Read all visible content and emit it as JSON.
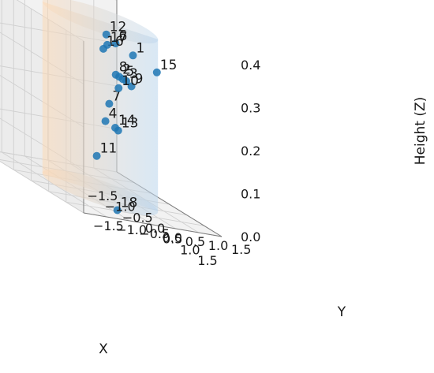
{
  "chart_data": {
    "type": "scatter3d",
    "title": "",
    "xlabel": "X",
    "ylabel": "Y",
    "zlabel": "Height (Z)",
    "xlim": [
      -1.5,
      1.5
    ],
    "ylim": [
      -1.5,
      1.5
    ],
    "zlim": [
      0.0,
      0.4
    ],
    "x_ticks": [
      "−1.5",
      "−1.0",
      "−0.5",
      "0.0",
      "0.5",
      "1.0",
      "1.5"
    ],
    "y_ticks": [
      "−1.5",
      "−1.0",
      "−0.5",
      "0.0",
      "0.5",
      "1.0",
      "1.5"
    ],
    "z_ticks": [
      "0.0",
      "0.1",
      "0.2",
      "0.3",
      "0.4"
    ],
    "grid": true,
    "cylinder": {
      "radius": 1.0,
      "z_range": [
        0.0,
        0.4
      ],
      "colors": [
        "#fdd9b5",
        "#b9d4ec"
      ]
    },
    "point_color": "#1f77b4",
    "points": [
      {
        "label": "1",
        "x": -0.05,
        "y": 0.75,
        "z": 0.33
      },
      {
        "label": "2",
        "x": -0.18,
        "y": 0.55,
        "z": 0.27
      },
      {
        "label": "3",
        "x": 0.02,
        "y": 0.55,
        "z": 0.27
      },
      {
        "label": "4",
        "x": -0.22,
        "y": 0.28,
        "z": 0.16
      },
      {
        "label": "5",
        "x": -0.08,
        "y": 0.55,
        "z": 0.27
      },
      {
        "label": "6",
        "x": -0.35,
        "y": 0.6,
        "z": 0.34
      },
      {
        "label": "7",
        "x": -0.27,
        "y": 0.4,
        "z": 0.2
      },
      {
        "label": "8",
        "x": -0.28,
        "y": 0.55,
        "z": 0.27
      },
      {
        "label": "9",
        "x": 0.3,
        "y": 0.45,
        "z": 0.27
      },
      {
        "label": "10",
        "x": 0.0,
        "y": 0.4,
        "z": 0.25
      },
      {
        "label": "11",
        "x": -0.1,
        "y": 0.0,
        "z": 0.08
      },
      {
        "label": "12",
        "x": -0.55,
        "y": 0.55,
        "z": 0.35
      },
      {
        "label": "13",
        "x": 0.25,
        "y": 0.2,
        "z": 0.16
      },
      {
        "label": "14",
        "x": 0.1,
        "y": 0.25,
        "z": 0.16
      },
      {
        "label": "15",
        "x": 0.5,
        "y": 0.85,
        "z": 0.32
      },
      {
        "label": "16",
        "x": -0.7,
        "y": 0.6,
        "z": 0.31
      },
      {
        "label": "17",
        "x": -0.72,
        "y": 0.7,
        "z": 0.32
      },
      {
        "label": "18",
        "x": 0.95,
        "y": -0.35,
        "z": 0.0
      }
    ]
  }
}
